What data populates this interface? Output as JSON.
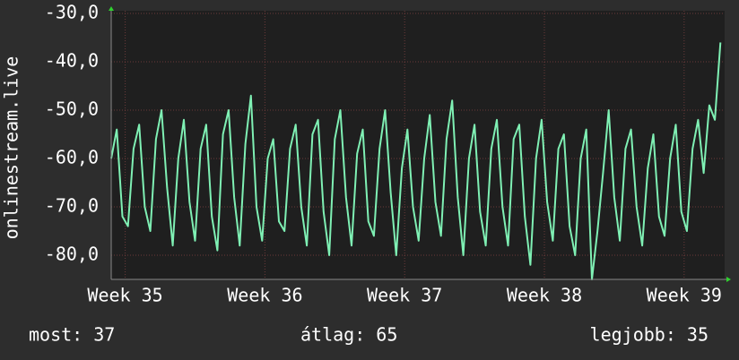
{
  "chart_data": {
    "type": "line",
    "y_label": "onlinestream.live",
    "xlim": [
      34.9,
      39.29
    ],
    "xticks": [
      {
        "value": 35,
        "label": "Week 35"
      },
      {
        "value": 36,
        "label": "Week 36"
      },
      {
        "value": 37,
        "label": "Week 37"
      },
      {
        "value": 38,
        "label": "Week 38"
      },
      {
        "value": 39,
        "label": "Week 39"
      }
    ],
    "ylim": [
      -85,
      -30
    ],
    "yticks": [
      {
        "value": -30,
        "label": "-30,0"
      },
      {
        "value": -40,
        "label": "-40,0"
      },
      {
        "value": -50,
        "label": "-50,0"
      },
      {
        "value": -60,
        "label": "-60,0"
      },
      {
        "value": -70,
        "label": "-70,0"
      },
      {
        "value": -80,
        "label": "-80,0"
      }
    ],
    "grid": true,
    "x": [
      34.9,
      34.94,
      34.98,
      35.02,
      35.06,
      35.1,
      35.14,
      35.18,
      35.22,
      35.26,
      35.3,
      35.34,
      35.38,
      35.42,
      35.46,
      35.5,
      35.54,
      35.58,
      35.62,
      35.66,
      35.7,
      35.74,
      35.78,
      35.82,
      35.86,
      35.9,
      35.94,
      35.98,
      36.02,
      36.06,
      36.1,
      36.14,
      36.18,
      36.22,
      36.26,
      36.3,
      36.34,
      36.38,
      36.42,
      36.46,
      36.5,
      36.54,
      36.58,
      36.62,
      36.66,
      36.7,
      36.74,
      36.78,
      36.82,
      36.86,
      36.9,
      36.94,
      36.98,
      37.02,
      37.06,
      37.1,
      37.14,
      37.18,
      37.22,
      37.26,
      37.3,
      37.34,
      37.38,
      37.42,
      37.46,
      37.5,
      37.54,
      37.58,
      37.62,
      37.66,
      37.7,
      37.74,
      37.78,
      37.82,
      37.86,
      37.9,
      37.94,
      37.98,
      38.02,
      38.06,
      38.1,
      38.14,
      38.18,
      38.22,
      38.26,
      38.3,
      38.34,
      38.38,
      38.42,
      38.46,
      38.5,
      38.54,
      38.58,
      38.62,
      38.66,
      38.7,
      38.74,
      38.78,
      38.82,
      38.86,
      38.9,
      38.94,
      38.98,
      39.02,
      39.06,
      39.1,
      39.14,
      39.18,
      39.22,
      39.26
    ],
    "series": [
      {
        "name": "onlinestream.live",
        "color": "#7ff0b4",
        "values": [
          -60,
          -54,
          -72,
          -74,
          -58,
          -53,
          -70,
          -75,
          -56,
          -50,
          -66,
          -78,
          -60,
          -52,
          -69,
          -77,
          -58,
          -53,
          -72,
          -79,
          -55,
          -50,
          -68,
          -78,
          -57,
          -47,
          -70,
          -77,
          -60,
          -56,
          -73,
          -75,
          -58,
          -53,
          -70,
          -78,
          -55,
          -52,
          -71,
          -80,
          -56,
          -50,
          -68,
          -78,
          -59,
          -54,
          -73,
          -76,
          -58,
          -50,
          -67,
          -80,
          -62,
          -54,
          -70,
          -77,
          -60,
          -51,
          -69,
          -76,
          -56,
          -48,
          -68,
          -80,
          -60,
          -53,
          -71,
          -78,
          -58,
          -52,
          -70,
          -78,
          -56,
          -53,
          -72,
          -82,
          -60,
          -52,
          -69,
          -77,
          -58,
          -55,
          -74,
          -80,
          -60,
          -54,
          -85,
          -75,
          -63,
          -50,
          -68,
          -77,
          -58,
          -54,
          -70,
          -78,
          -62,
          -55,
          -72,
          -76,
          -60,
          -53,
          -71,
          -75,
          -58,
          -52,
          -63,
          -49,
          -52,
          -36
        ]
      }
    ],
    "footer": {
      "current": "most: 37",
      "average": "átlag: 65",
      "best": "legjobb: 35"
    }
  }
}
